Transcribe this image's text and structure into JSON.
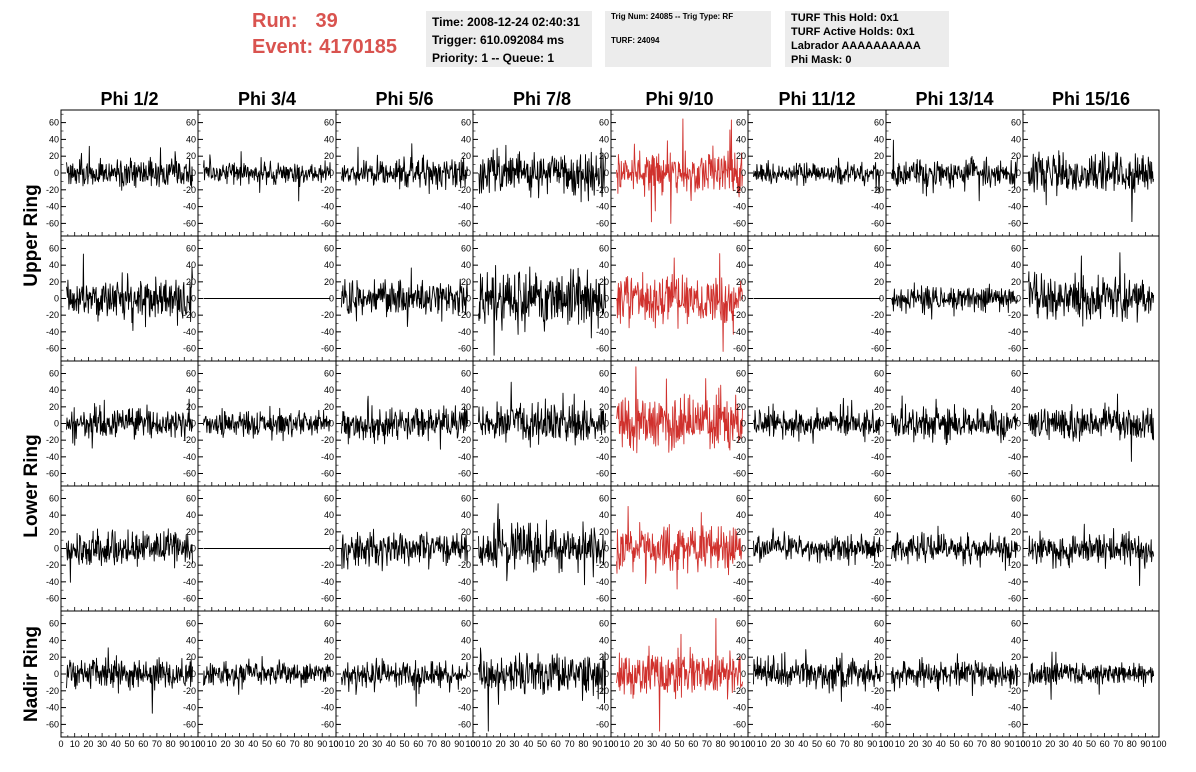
{
  "header": {
    "run_label": "Run:",
    "run_value": "39",
    "event_label": "Event:",
    "event_value": "4170185",
    "time": "Time: 2008-12-24 02:40:31",
    "trigger": "Trigger: 610.092084 ms",
    "priority": "Priority: 1 -- Queue: 1",
    "trig_num": "Trig Num: 24085 -- Trig Type: RF",
    "turf": "TURF: 24094",
    "turf_this_hold": "TURF This Hold: 0x1",
    "turf_active_holds": "TURF Active Holds: 0x1",
    "labrador": "Labrador AAAAAAAAAA",
    "phi_mask": "Phi Mask: 0"
  },
  "colors": {
    "run_text": "#d9534f",
    "info_bg": "#ececec",
    "highlight_trace": "#d0312d",
    "trace": "#000000"
  },
  "chart_data": {
    "type": "line",
    "columns": [
      "Phi 1/2",
      "Phi 3/4",
      "Phi 5/6",
      "Phi 7/8",
      "Phi 9/10",
      "Phi 11/12",
      "Phi 13/14",
      "Phi 15/16"
    ],
    "rows": [
      "Upper Ring",
      "Upper Ring",
      "Lower Ring",
      "Lower Ring",
      "Nadir Ring"
    ],
    "row_labels": [
      "Upper Ring",
      "Lower Ring",
      "Nadir Ring"
    ],
    "xlim": [
      0,
      100
    ],
    "ylim": [
      -75,
      75
    ],
    "x_ticks": [
      "0",
      "10",
      "20",
      "30",
      "40",
      "50",
      "60",
      "70",
      "80",
      "90",
      "100"
    ],
    "y_ticks": [
      "60",
      "40",
      "20",
      "0",
      "-20",
      "-40",
      "-60"
    ],
    "highlight_column": "Phi 9/10",
    "flat_channels": [
      [
        1,
        1
      ],
      [
        1,
        5
      ],
      [
        3,
        1
      ]
    ],
    "grid": false,
    "amplitude": [
      [
        15,
        12,
        15,
        22,
        24,
        12,
        15,
        22
      ],
      [
        22,
        0,
        18,
        30,
        25,
        0,
        14,
        22
      ],
      [
        15,
        13,
        18,
        22,
        28,
        14,
        18,
        18
      ],
      [
        18,
        0,
        18,
        25,
        25,
        14,
        15,
        18
      ],
      [
        15,
        12,
        13,
        22,
        25,
        15,
        14,
        12
      ]
    ]
  }
}
